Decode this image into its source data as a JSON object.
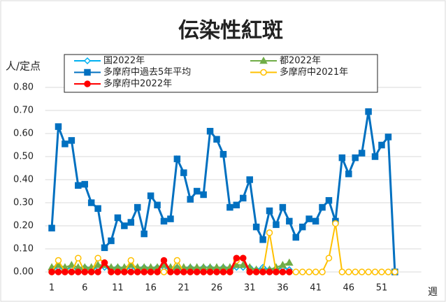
{
  "chart_data": {
    "type": "line",
    "title": "伝染性紅斑",
    "y_label": "人/定点",
    "x_label": "週",
    "x": [
      1,
      2,
      3,
      4,
      5,
      6,
      7,
      8,
      9,
      10,
      11,
      12,
      13,
      14,
      15,
      16,
      17,
      18,
      19,
      20,
      21,
      22,
      23,
      24,
      25,
      26,
      27,
      28,
      29,
      30,
      31,
      32,
      33,
      34,
      35,
      36,
      37,
      38,
      39,
      40,
      41,
      42,
      43,
      44,
      45,
      46,
      47,
      48,
      49,
      50,
      51,
      52,
      53
    ],
    "xlim": [
      0,
      57
    ],
    "xticks": [
      1,
      6,
      11,
      16,
      21,
      26,
      31,
      36,
      41,
      46,
      51
    ],
    "ylim": [
      0,
      0.8
    ],
    "yticks": [
      {
        "value": 0,
        "label": "0.00"
      },
      {
        "value": 0.1,
        "label": "0.10"
      },
      {
        "value": 0.2,
        "label": "0.20"
      },
      {
        "value": 0.3,
        "label": "0.30"
      },
      {
        "value": 0.4,
        "label": "0.40"
      },
      {
        "value": 0.5,
        "label": "0.50"
      },
      {
        "value": 0.6,
        "label": "0.60"
      },
      {
        "value": 0.7,
        "label": "0.70"
      },
      {
        "value": 0.8,
        "label": "0.80"
      }
    ],
    "grid": true,
    "series": [
      {
        "name": "国2022年",
        "color": "#00b0f0",
        "marker": "diamond",
        "hollow": true,
        "values": [
          0.01,
          0.02,
          0.01,
          0.02,
          0.01,
          0.02,
          0.01,
          0.02,
          0.02,
          0.01,
          0.02,
          0.01,
          0.02,
          0.01,
          0.02,
          0.01,
          0.02,
          0.02,
          0.01,
          0.02,
          0.01,
          0.02,
          0.01,
          0.02,
          0.02,
          0.01,
          0.02,
          0.01,
          0.02,
          0.02,
          0.02,
          0.01,
          0.02,
          0.01,
          0.01,
          0.02,
          0.01,
          null,
          null,
          null,
          null,
          null,
          null,
          null,
          null,
          null,
          null,
          null,
          null,
          null,
          null,
          null,
          null
        ]
      },
      {
        "name": "都2022年",
        "color": "#70ad47",
        "marker": "triangle",
        "hollow": false,
        "values": [
          0.02,
          0.03,
          0.02,
          0.03,
          0.02,
          0.02,
          0.02,
          0.03,
          0.03,
          0.02,
          0.02,
          0.02,
          0.03,
          0.02,
          0.02,
          0.02,
          0.02,
          0.03,
          0.02,
          0.02,
          0.02,
          0.02,
          0.02,
          0.02,
          0.02,
          0.02,
          0.02,
          0.02,
          0.03,
          0.03,
          0.02,
          0.01,
          0.01,
          0.01,
          0.02,
          0.03,
          0.04,
          null,
          null,
          null,
          null,
          null,
          null,
          null,
          null,
          null,
          null,
          null,
          null,
          null,
          null,
          null,
          null
        ]
      },
      {
        "name": "多摩府中過去5年平均",
        "color": "#0070c0",
        "marker": "square",
        "hollow": false,
        "values": [
          0.19,
          0.63,
          0.555,
          0.57,
          0.375,
          0.38,
          0.3,
          0.275,
          0.105,
          0.135,
          0.235,
          0.2,
          0.215,
          0.28,
          0.165,
          0.33,
          0.29,
          0.22,
          0.23,
          0.49,
          0.43,
          0.315,
          0.35,
          0.335,
          0.61,
          0.575,
          0.51,
          0.28,
          0.29,
          0.32,
          0.4,
          0.195,
          0.14,
          0.265,
          0.205,
          0.28,
          0.22,
          0.15,
          0.195,
          0.23,
          0.22,
          0.28,
          0.31,
          0.22,
          0.495,
          0.425,
          0.495,
          0.515,
          0.695,
          0.5,
          0.55,
          0.585,
          0
        ]
      },
      {
        "name": "多摩府中2021年",
        "color": "#ffc000",
        "marker": "circle",
        "hollow": true,
        "values": [
          0,
          0.05,
          0,
          0,
          0.06,
          0,
          0,
          0.06,
          0.04,
          0,
          0,
          0,
          0.05,
          0,
          0,
          0,
          0,
          0,
          0,
          0.05,
          0,
          0,
          0,
          0,
          0,
          0,
          0,
          0,
          0.05,
          0.06,
          0,
          0,
          0,
          0.17,
          0,
          0,
          0,
          0,
          0,
          0,
          0,
          0,
          0.06,
          0.21,
          0,
          0,
          0,
          0,
          0,
          0,
          0,
          0,
          0
        ]
      },
      {
        "name": "多摩府中2022年",
        "color": "#ff0000",
        "marker": "circle",
        "hollow": false,
        "values": [
          0,
          0,
          0,
          0,
          0,
          0,
          0,
          0,
          0.04,
          0,
          0,
          0,
          0,
          0,
          0,
          0,
          0,
          0.05,
          0,
          0,
          0,
          0,
          0,
          0,
          0,
          0,
          0,
          0,
          0.06,
          0.06,
          0,
          0,
          0,
          0,
          0,
          0,
          0,
          null,
          null,
          null,
          null,
          null,
          null,
          null,
          null,
          null,
          null,
          null,
          null,
          null,
          null,
          null,
          null
        ]
      }
    ]
  }
}
